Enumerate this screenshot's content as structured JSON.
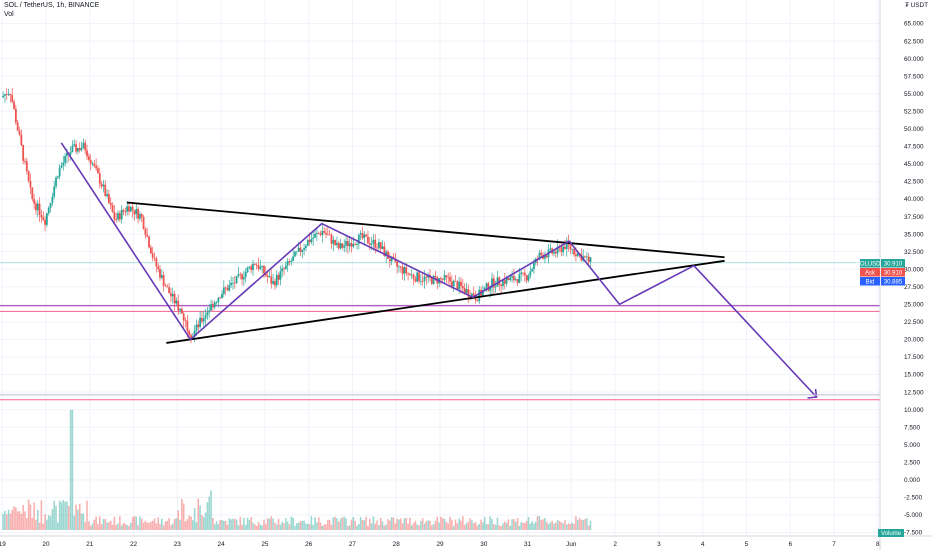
{
  "header": {
    "symbol_line": "SOL / TetherUS, 1h, BINANCE",
    "volume_label": "Vol",
    "currency_label": "₮ USDT"
  },
  "price_tags": [
    {
      "label": "SOLUSDT",
      "value": "30.910",
      "color": "#26a69a"
    },
    {
      "label": "Ask",
      "value": "30.910",
      "color": "#ef5350"
    },
    {
      "label": "Bid",
      "value": "30.885",
      "color": "#2962ff"
    }
  ],
  "volume_tag": {
    "label": "Volume",
    "color": "#26a69a"
  },
  "colors": {
    "up": "#26a69a",
    "down": "#ef5350",
    "trendline": "#000000",
    "projection": "#673ab7",
    "level_outer": "#9c27b0",
    "level_inner": "#f06292",
    "grid": "#f0f3fa"
  },
  "chart_data": {
    "type": "candlestick",
    "price_ticks": [
      "65.000",
      "62.500",
      "60.000",
      "57.500",
      "55.000",
      "52.500",
      "50.000",
      "47.500",
      "45.000",
      "42.500",
      "40.000",
      "37.500",
      "35.000",
      "32.500",
      "30.000",
      "27.500",
      "25.000",
      "22.500",
      "20.000",
      "17.500",
      "15.000",
      "12.500",
      "10.000",
      "7.500",
      "5.000",
      "2.500",
      "0.000",
      "-2.500",
      "-5.000",
      "-7.500"
    ],
    "time_labels": [
      "19",
      "20",
      "21",
      "22",
      "23",
      "24",
      "25",
      "26",
      "27",
      "28",
      "29",
      "30",
      "31",
      "Jun",
      "2",
      "3",
      "4",
      "5",
      "6",
      "7",
      "8"
    ],
    "ohlc_anchors": [
      {
        "day": 19.0,
        "price": 54.5
      },
      {
        "day": 19.2,
        "price": 55.5
      },
      {
        "day": 19.5,
        "price": 46
      },
      {
        "day": 19.7,
        "price": 40
      },
      {
        "day": 20.0,
        "price": 37
      },
      {
        "day": 20.3,
        "price": 44
      },
      {
        "day": 20.6,
        "price": 47
      },
      {
        "day": 20.9,
        "price": 47.5
      },
      {
        "day": 21.3,
        "price": 42
      },
      {
        "day": 21.6,
        "price": 37
      },
      {
        "day": 21.9,
        "price": 39
      },
      {
        "day": 22.2,
        "price": 37.5
      },
      {
        "day": 22.5,
        "price": 31
      },
      {
        "day": 22.8,
        "price": 27
      },
      {
        "day": 23.1,
        "price": 24
      },
      {
        "day": 23.35,
        "price": 20.5
      },
      {
        "day": 23.7,
        "price": 24
      },
      {
        "day": 24.0,
        "price": 26.5
      },
      {
        "day": 24.4,
        "price": 28.5
      },
      {
        "day": 24.8,
        "price": 31
      },
      {
        "day": 25.2,
        "price": 28
      },
      {
        "day": 25.6,
        "price": 31
      },
      {
        "day": 26.0,
        "price": 34
      },
      {
        "day": 26.35,
        "price": 35.5
      },
      {
        "day": 26.7,
        "price": 33
      },
      {
        "day": 27.2,
        "price": 34.5
      },
      {
        "day": 27.6,
        "price": 33.5
      },
      {
        "day": 28.0,
        "price": 30.5
      },
      {
        "day": 28.4,
        "price": 29
      },
      {
        "day": 28.8,
        "price": 28.5
      },
      {
        "day": 29.2,
        "price": 28.5
      },
      {
        "day": 29.6,
        "price": 27
      },
      {
        "day": 29.85,
        "price": 26
      },
      {
        "day": 30.2,
        "price": 28
      },
      {
        "day": 30.6,
        "price": 28.5
      },
      {
        "day": 31.0,
        "price": 29
      },
      {
        "day": 31.3,
        "price": 32
      },
      {
        "day": 31.7,
        "price": 32.5
      },
      {
        "day": 31.9,
        "price": 33.5
      },
      {
        "day": 32.1,
        "price": 32.5
      },
      {
        "day": 32.45,
        "price": 31
      }
    ],
    "trendlines": [
      {
        "name": "upper",
        "from": {
          "day": 21.85,
          "price": 39.5
        },
        "to": {
          "day": 35.5,
          "price": 31.7
        }
      },
      {
        "name": "lower",
        "from": {
          "day": 22.75,
          "price": 19.5
        },
        "to": {
          "day": 35.5,
          "price": 31.2
        }
      }
    ],
    "projection": [
      {
        "day": 20.35,
        "price": 48
      },
      {
        "day": 23.3,
        "price": 20
      },
      {
        "day": 26.3,
        "price": 36.5
      },
      {
        "day": 29.75,
        "price": 26
      },
      {
        "day": 31.95,
        "price": 34
      },
      {
        "day": 33.1,
        "price": 25
      },
      {
        "day": 34.8,
        "price": 30.5
      },
      {
        "day": 37.6,
        "price": 11.8
      }
    ],
    "horizontal_levels": [
      {
        "price": 24.8,
        "color": "#9c27b0"
      },
      {
        "price": 24.0,
        "color": "#f06292"
      },
      {
        "price": 12.1,
        "color": "#9c27b0"
      },
      {
        "price": 11.4,
        "color": "#f06292"
      }
    ],
    "last_price": 30.91,
    "ylim": [
      -7.5,
      65
    ],
    "xlim": [
      18.95,
      39.05
    ],
    "volume_spike_day": 20.55
  }
}
